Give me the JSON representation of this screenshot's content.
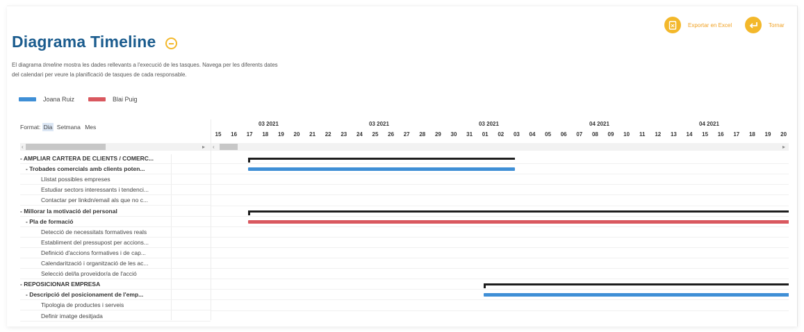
{
  "header": {
    "title": "Diagrama Timeline",
    "info_icon": "minus-circle-icon",
    "desc_pre": "El diagrama ",
    "desc_em": "timeline",
    "desc_post": " mostra les dades rellevants a l'execució de les tasques. Navega per les diferents dates",
    "desc_line2": "del calendari per veure la planificació de tasques de cada responsable."
  },
  "toolbar": {
    "export_label": "Exportar en Excel",
    "export_icon": "excel-file-icon",
    "back_label": "Tornar",
    "back_icon": "return-arrow-icon",
    "accent": "#f3b82b"
  },
  "legend": [
    {
      "name": "Joana Ruiz",
      "color": "#3f8fd6"
    },
    {
      "name": "Blai Puig",
      "color": "#d9585f"
    }
  ],
  "format": {
    "label": "Format:",
    "options": [
      "Dia",
      "Setmana",
      "Mes"
    ],
    "selected": "Dia"
  },
  "timeline": {
    "months": [
      {
        "label": "03 2021"
      },
      {
        "label": "03 2021"
      },
      {
        "label": "03 2021"
      },
      {
        "label": "04 2021"
      },
      {
        "label": "04 2021"
      }
    ],
    "days": [
      "15",
      "16",
      "17",
      "18",
      "19",
      "20",
      "21",
      "22",
      "23",
      "24",
      "25",
      "26",
      "27",
      "28",
      "29",
      "30",
      "31",
      "01",
      "02",
      "03",
      "04",
      "05",
      "06",
      "07",
      "08",
      "09",
      "10",
      "11",
      "12",
      "13",
      "14",
      "15",
      "16",
      "17",
      "18",
      "19",
      "20"
    ]
  },
  "rows": [
    {
      "label": "- AMPLIAR CARTERA DE CLIENTS / COMERC...",
      "level": 0,
      "bold": true,
      "bar": {
        "type": "summary",
        "start": 2,
        "end": 19
      }
    },
    {
      "label": "- Trobades comercials amb clients poten...",
      "level": 1,
      "bold": true,
      "bar": {
        "type": "task",
        "owner": 0,
        "start": 2,
        "end": 19
      }
    },
    {
      "label": "Llistat possibles empreses",
      "level": 2,
      "bold": false
    },
    {
      "label": "Estudiar sectors interessants i tendenci...",
      "level": 2,
      "bold": false
    },
    {
      "label": "Contactar per linkdn/email als que no c...",
      "level": 2,
      "bold": false
    },
    {
      "label": "- Millorar la motivació del personal",
      "level": 0,
      "bold": true,
      "bar": {
        "type": "summary",
        "start": 2,
        "end": 37
      }
    },
    {
      "label": "- Pla de formació",
      "level": 1,
      "bold": true,
      "bar": {
        "type": "task",
        "owner": 1,
        "start": 2,
        "end": 37
      }
    },
    {
      "label": "Detecció de necessitats formatives reals",
      "level": 2,
      "bold": false
    },
    {
      "label": "Establiment del pressupost per accions...",
      "level": 2,
      "bold": false
    },
    {
      "label": "Definició d'accions formatives i de cap...",
      "level": 2,
      "bold": false
    },
    {
      "label": "Calendarització i organització de les ac...",
      "level": 2,
      "bold": false
    },
    {
      "label": "Selecció del/la proveïdor/a de l'acció",
      "level": 2,
      "bold": false
    },
    {
      "label": "- REPOSICIONAR EMPRESA",
      "level": 0,
      "bold": true,
      "bar": {
        "type": "summary",
        "start": 17,
        "end": 37
      }
    },
    {
      "label": "- Descripció del posicionament de l'emp...",
      "level": 1,
      "bold": true,
      "bar": {
        "type": "task",
        "owner": 0,
        "start": 17,
        "end": 37
      }
    },
    {
      "label": "Tipologia de productes i serveis",
      "level": 2,
      "bold": false
    },
    {
      "label": "Definir imatge desitjada",
      "level": 2,
      "bold": false
    }
  ]
}
